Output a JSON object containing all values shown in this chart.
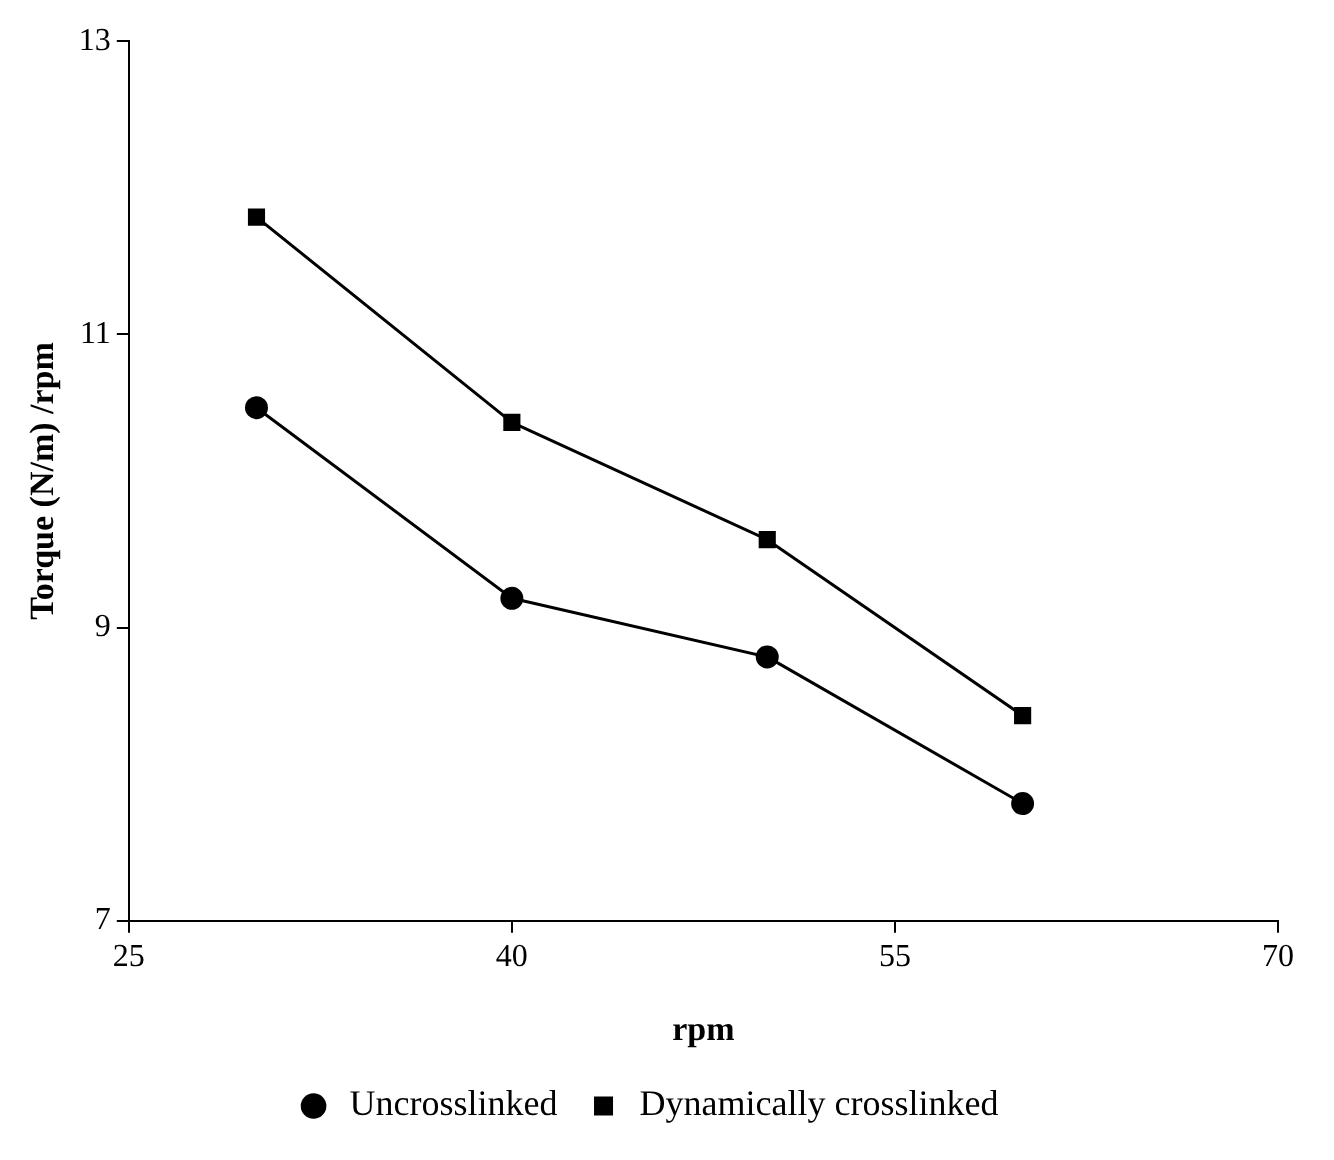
{
  "chart_data": {
    "type": "line",
    "xlabel": "rpm",
    "ylabel": "Torque (N/m) /rpm",
    "x": [
      30,
      40,
      50,
      60
    ],
    "xlim": [
      25,
      70
    ],
    "xticks": [
      25,
      40,
      55,
      70
    ],
    "ylim": [
      7,
      13
    ],
    "yticks": [
      7,
      9,
      11,
      13
    ],
    "grid": false,
    "legend": "bottom",
    "series": [
      {
        "name": "Uncrosslinked",
        "color": "#000000",
        "marker": "circle",
        "values": [
          10.5,
          9.2,
          8.8,
          7.8
        ]
      },
      {
        "name": "Dynamically crosslinked",
        "color": "#000000",
        "marker": "square",
        "values": [
          11.8,
          10.4,
          9.6,
          8.4
        ]
      }
    ]
  }
}
